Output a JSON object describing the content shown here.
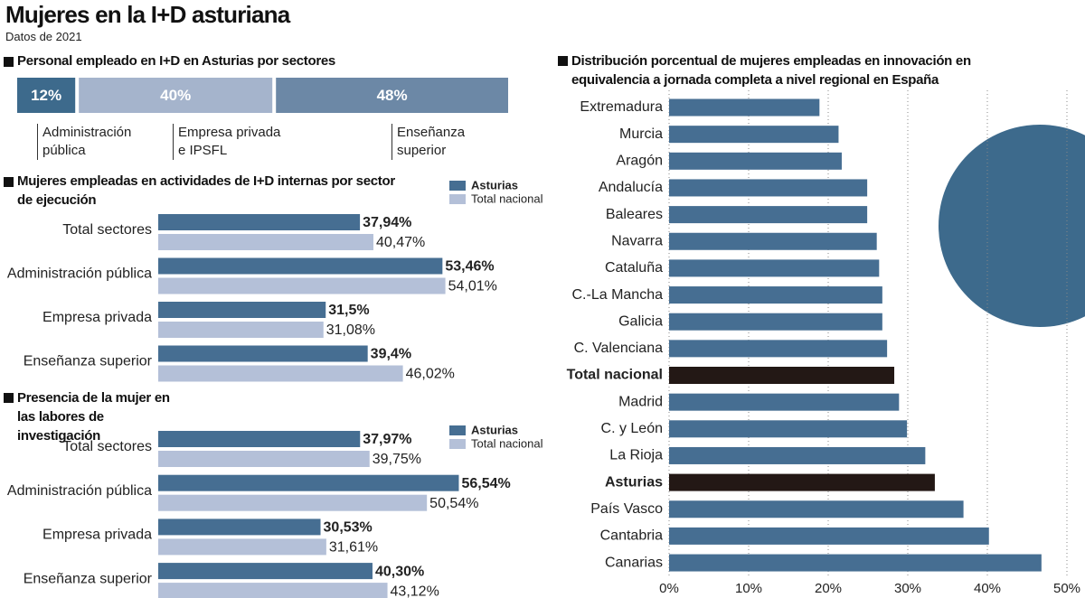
{
  "header": {
    "title": "Mujeres en la I+D asturiana",
    "subtitle": "Datos de 2021"
  },
  "chart_data": [
    {
      "type": "share-bar",
      "title": "Personal empleado en I+D en Asturias por sectores",
      "categories": [
        "Administración pública",
        "Empresa privada e IPSFL",
        "Enseñanza superior"
      ],
      "values": [
        12,
        40,
        48
      ],
      "value_labels": [
        "12%",
        "40%",
        "48%"
      ],
      "colors": [
        "#3d6a8c",
        "#a5b4cc",
        "#6c88a6"
      ]
    },
    {
      "type": "grouped-bar",
      "title": "Mujeres empleadas en actividades de I+D internas por sector de ejecución",
      "categories": [
        "Total sectores",
        "Administración pública",
        "Empresa privada",
        "Enseñanza superior"
      ],
      "series": [
        {
          "name": "Asturias",
          "color": "#466e92",
          "values": [
            37.94,
            53.46,
            31.5,
            39.4
          ],
          "value_labels": [
            "37,94%",
            "53,46%",
            "31,5%",
            "39,4%"
          ]
        },
        {
          "name": "Total nacional",
          "color": "#b4c0d8",
          "values": [
            40.47,
            54.01,
            31.08,
            46.02
          ],
          "value_labels": [
            "40,47%",
            "54,01%",
            "31,08%",
            "46,02%"
          ]
        }
      ]
    },
    {
      "type": "grouped-bar",
      "title": "Presencia de la mujer en las labores de investigación",
      "categories": [
        "Total sectores",
        "Administración pública",
        "Empresa privada",
        "Enseñanza superior"
      ],
      "series": [
        {
          "name": "Asturias",
          "color": "#466e92",
          "values": [
            37.97,
            56.54,
            30.53,
            40.3
          ],
          "value_labels": [
            "37,97%",
            "56,54%",
            "30,53%",
            "40,30%"
          ]
        },
        {
          "name": "Total nacional",
          "color": "#b4c0d8",
          "values": [
            39.75,
            50.54,
            31.61,
            43.12
          ],
          "value_labels": [
            "39,75%",
            "50,54%",
            "31,61%",
            "43,12%"
          ]
        }
      ]
    },
    {
      "type": "hbar",
      "title": "Distribución porcentual de mujeres empleadas en innovación en equivalencia a jornada completa a nivel regional en España",
      "categories": [
        "Extremadura",
        "Murcia",
        "Aragón",
        "Andalucía",
        "Baleares",
        "Navarra",
        "Cataluña",
        "C.-La Mancha",
        "Galicia",
        "C. Valenciana",
        "Total nacional",
        "Madrid",
        "C. y León",
        "La Rioja",
        "Asturias",
        "País Vasco",
        "Cantabria",
        "Canarias"
      ],
      "values": [
        18.9,
        21.3,
        21.7,
        24.9,
        24.9,
        26.1,
        26.4,
        26.8,
        26.8,
        27.4,
        28.3,
        28.9,
        29.9,
        32.2,
        33.4,
        37.0,
        40.2,
        46.8
      ],
      "color": "#466e92",
      "colors": [
        "#466e92",
        "#466e92",
        "#466e92",
        "#466e92",
        "#466e92",
        "#466e92",
        "#466e92",
        "#466e92",
        "#466e92",
        "#466e92",
        "#231815",
        "#466e92",
        "#466e92",
        "#466e92",
        "#231815",
        "#466e92",
        "#466e92",
        "#466e92"
      ],
      "xlim": [
        0,
        50
      ],
      "xticks": [
        {
          "value": 0,
          "label": "0%"
        },
        {
          "value": 10,
          "label": "10%"
        },
        {
          "value": 20,
          "label": "20%"
        },
        {
          "value": 30,
          "label": "30%"
        },
        {
          "value": 40,
          "label": "40%"
        },
        {
          "value": 50,
          "label": "50%"
        }
      ],
      "grid": true
    }
  ]
}
